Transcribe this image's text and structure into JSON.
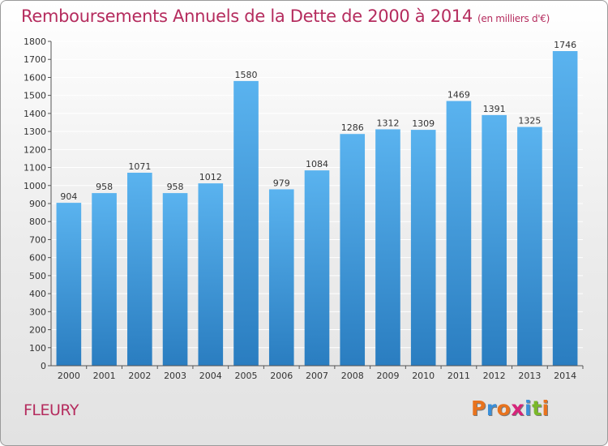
{
  "header": {
    "title": "Remboursements Annuels de la Dette de 2000 à 2014",
    "subtitle": "(en milliers d'€)"
  },
  "footer": {
    "commune": "FLEURY",
    "logo_text": "Proxiti",
    "logo_colors": [
      "#e8731e",
      "#3a8fd9",
      "#e8731e",
      "#d6247a",
      "#3a8fd9",
      "#7ab829",
      "#e8731e"
    ]
  },
  "colors": {
    "title": "#b52c5e",
    "bar_top": "#5ab3ef",
    "bar_bottom": "#2a7dc0",
    "grid": "#ffffff"
  },
  "chart_data": {
    "type": "bar",
    "title": "Remboursements Annuels de la Dette de 2000 à 2014",
    "subtitle": "(en milliers d'€)",
    "categories": [
      "2000",
      "2001",
      "2002",
      "2003",
      "2004",
      "2005",
      "2006",
      "2007",
      "2008",
      "2009",
      "2010",
      "2011",
      "2012",
      "2013",
      "2014"
    ],
    "values": [
      904,
      958,
      1071,
      958,
      1012,
      1580,
      979,
      1084,
      1286,
      1312,
      1309,
      1469,
      1391,
      1325,
      1746
    ],
    "ylim": [
      0,
      1800
    ],
    "yticks": [
      0,
      100,
      200,
      300,
      400,
      500,
      600,
      700,
      800,
      900,
      1000,
      1100,
      1200,
      1300,
      1400,
      1500,
      1600,
      1700,
      1800
    ],
    "grid": true,
    "data_labels": true
  }
}
